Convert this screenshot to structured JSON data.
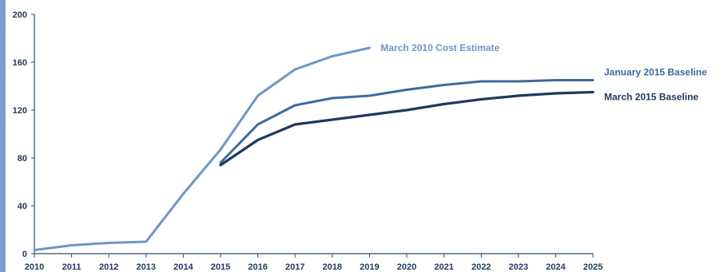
{
  "chart_data": {
    "type": "line",
    "title": "",
    "xlabel": "",
    "ylabel": "",
    "xlim": [
      2010,
      2025
    ],
    "ylim": [
      0,
      200
    ],
    "x_ticks": [
      "2010",
      "2011",
      "2012",
      "2013",
      "2014",
      "2015",
      "2016",
      "2017",
      "2018",
      "2019",
      "2020",
      "2021",
      "2022",
      "2023",
      "2024",
      "2025"
    ],
    "y_ticks": [
      "0",
      "40",
      "80",
      "120",
      "160",
      "200"
    ],
    "grid": false,
    "legend": "labels at line ends",
    "series": [
      {
        "name": "March 2010 Cost Estimate",
        "color": "#6c96c8",
        "x": [
          2010,
          2011,
          2012,
          2013,
          2014,
          2015,
          2016,
          2017,
          2018,
          2019
        ],
        "y": [
          3,
          7,
          9,
          10,
          50,
          87,
          132,
          154,
          165,
          172
        ]
      },
      {
        "name": "January 2015 Baseline",
        "color": "#3e6a9e",
        "x": [
          2015,
          2016,
          2017,
          2018,
          2019,
          2020,
          2021,
          2022,
          2023,
          2024,
          2025
        ],
        "y": [
          76,
          108,
          124,
          130,
          132,
          137,
          141,
          144,
          144,
          145,
          145
        ]
      },
      {
        "name": "March 2015 Baseline",
        "color": "#1d3a5e",
        "x": [
          2015,
          2016,
          2017,
          2018,
          2019,
          2020,
          2021,
          2022,
          2023,
          2024,
          2025
        ],
        "y": [
          74,
          95,
          108,
          112,
          116,
          120,
          125,
          129,
          132,
          134,
          135
        ]
      }
    ]
  }
}
